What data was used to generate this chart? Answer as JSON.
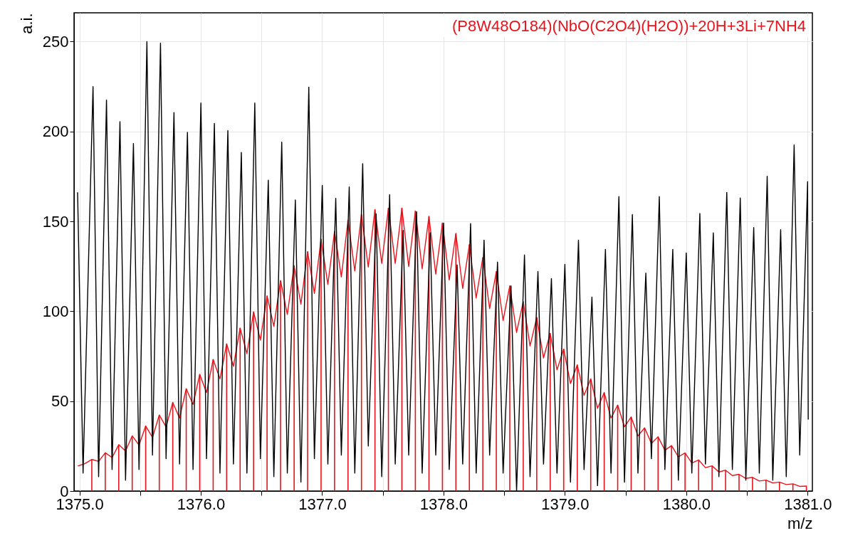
{
  "chart_data": {
    "type": "line",
    "xlabel": "m/z",
    "ylabel": "a.i.",
    "xlim": [
      1374.985,
      1381.01
    ],
    "ylim": [
      0,
      266
    ],
    "xticks": [
      {
        "value": 1375,
        "label": "1375.0"
      },
      {
        "value": 1375.5,
        "label": null
      },
      {
        "value": 1376,
        "label": "1376.0"
      },
      {
        "value": 1376.5,
        "label": null
      },
      {
        "value": 1377,
        "label": "1377.0"
      },
      {
        "value": 1377.5,
        "label": null
      },
      {
        "value": 1378,
        "label": "1378.0"
      },
      {
        "value": 1378.5,
        "label": null
      },
      {
        "value": 1379,
        "label": "1379.0"
      },
      {
        "value": 1379.5,
        "label": null
      },
      {
        "value": 1380,
        "label": "1380.0"
      },
      {
        "value": 1380.5,
        "label": null
      },
      {
        "value": 1381,
        "label": "1381.0"
      }
    ],
    "yticks": [
      0,
      50,
      100,
      150,
      200,
      250
    ],
    "grid": true,
    "legend": "top right",
    "series": [
      {
        "color": "#000000",
        "x": [
          1374.985,
          1375.03,
          1375.112,
          1375.158,
          1375.223,
          1375.269,
          1375.334,
          1375.38,
          1375.445,
          1375.491,
          1375.556,
          1375.602,
          1375.668,
          1375.714,
          1375.779,
          1375.825,
          1375.89,
          1375.936,
          1376.001,
          1376.047,
          1376.112,
          1376.158,
          1376.223,
          1376.269,
          1376.334,
          1376.38,
          1376.445,
          1376.491,
          1376.556,
          1376.602,
          1376.667,
          1376.713,
          1376.779,
          1376.825,
          1376.89,
          1376.936,
          1377.001,
          1377.047,
          1377.112,
          1377.158,
          1377.223,
          1377.269,
          1377.334,
          1377.38,
          1377.445,
          1377.491,
          1377.556,
          1377.602,
          1377.667,
          1377.713,
          1377.778,
          1377.824,
          1377.89,
          1377.936,
          1378.001,
          1378.047,
          1378.112,
          1378.158,
          1378.223,
          1378.269,
          1378.334,
          1378.38,
          1378.445,
          1378.491,
          1378.556,
          1378.602,
          1378.667,
          1378.713,
          1378.778,
          1378.824,
          1378.889,
          1378.935,
          1379,
          1379.046,
          1379.112,
          1379.158,
          1379.223,
          1379.269,
          1379.334,
          1379.38,
          1379.445,
          1379.491,
          1379.556,
          1379.602,
          1379.667,
          1379.713,
          1379.778,
          1379.824,
          1379.889,
          1379.935,
          1380,
          1380.046,
          1380.112,
          1380.158,
          1380.223,
          1380.269,
          1380.334,
          1380.38,
          1380.445,
          1380.491,
          1380.556,
          1380.602,
          1380.667,
          1380.713,
          1380.778,
          1380.824,
          1380.889,
          1380.935,
          1381,
          1381.005
        ],
        "values": [
          166,
          10,
          225,
          8,
          217.5,
          12,
          205.5,
          6,
          193.3,
          12,
          250,
          20,
          249.2,
          18,
          210.5,
          15,
          199.5,
          12,
          215.8,
          18,
          204.5,
          10,
          200.5,
          15,
          188.3,
          10,
          215.8,
          18,
          172.9,
          8,
          194.1,
          10,
          161.9,
          5,
          224.7,
          18,
          170,
          15,
          162.8,
          20,
          169.1,
          10,
          182.1,
          25,
          154.1,
          8,
          164.9,
          15,
          145,
          20,
          155.4,
          10,
          143.7,
          20,
          149.1,
          12,
          125.8,
          15,
          148.8,
          10,
          139.6,
          20,
          127.4,
          10,
          114.1,
          0,
          131.3,
          8,
          122.1,
          15,
          118.2,
          10,
          126.1,
          5,
          139.6,
          12,
          107.9,
          3,
          134.4,
          10,
          163.8,
          5,
          153.8,
          10,
          121.2,
          18,
          163.8,
          12,
          134.4,
          6,
          132.4,
          10,
          154.4,
          15,
          143.6,
          8,
          166.1,
          12,
          163,
          6,
          146.6,
          10,
          175.1,
          6,
          145.4,
          8,
          192.5,
          20,
          172.1,
          40
        ]
      },
      {
        "type": "bar",
        "color": "#e8141c",
        "x": [
          1375.102,
          1375.213,
          1375.324,
          1375.435,
          1375.546,
          1375.658,
          1375.769,
          1375.88,
          1375.991,
          1376.102,
          1376.213,
          1376.324,
          1376.435,
          1376.546,
          1376.657,
          1376.769,
          1376.88,
          1376.991,
          1377.102,
          1377.213,
          1377.324,
          1377.435,
          1377.546,
          1377.657,
          1377.768,
          1377.88,
          1377.991,
          1378.102,
          1378.213,
          1378.324,
          1378.435,
          1378.546,
          1378.657,
          1378.768,
          1378.879,
          1378.99,
          1379.102,
          1379.213,
          1379.324,
          1379.435,
          1379.546,
          1379.657,
          1379.768,
          1379.879,
          1379.99,
          1380.102,
          1380.213,
          1380.324,
          1380.435,
          1380.546,
          1380.657,
          1380.768,
          1380.879,
          1380.99
        ],
        "values": [
          17.6,
          21.3,
          25.8,
          30.7,
          36.2,
          42.3,
          49.3,
          56.9,
          64.9,
          73.2,
          81.9,
          90.7,
          99.7,
          108.6,
          117.1,
          125.4,
          133.2,
          140.1,
          144.4,
          150.7,
          153.8,
          156.6,
          157.4,
          157.4,
          155.8,
          152.8,
          149.1,
          143.3,
          137.1,
          129.9,
          122.1,
          114.1,
          105.4,
          96.6,
          87.7,
          79,
          70.2,
          62.4,
          54.8,
          47.8,
          41.2,
          35.1,
          30.2,
          25.3,
          21.2,
          17.3,
          14,
          11.6,
          9.3,
          7.6,
          6.1,
          5,
          4,
          2.8
        ]
      },
      {
        "name": "(P8W48O184)(NbO(C2O4)(H2O))+20H+3Li+7NH4",
        "color": "#e8141c",
        "x": [
          1374.99,
          1375.046,
          1375.102,
          1375.158,
          1375.213,
          1375.269,
          1375.324,
          1375.38,
          1375.435,
          1375.491,
          1375.546,
          1375.602,
          1375.658,
          1375.714,
          1375.769,
          1375.825,
          1375.88,
          1375.936,
          1375.991,
          1376.047,
          1376.102,
          1376.158,
          1376.213,
          1376.269,
          1376.324,
          1376.38,
          1376.435,
          1376.491,
          1376.546,
          1376.602,
          1376.657,
          1376.713,
          1376.769,
          1376.825,
          1376.88,
          1376.936,
          1376.991,
          1377.047,
          1377.102,
          1377.158,
          1377.213,
          1377.269,
          1377.324,
          1377.38,
          1377.435,
          1377.491,
          1377.546,
          1377.602,
          1377.657,
          1377.713,
          1377.768,
          1377.824,
          1377.88,
          1377.936,
          1377.991,
          1378.047,
          1378.102,
          1378.158,
          1378.213,
          1378.269,
          1378.324,
          1378.38,
          1378.435,
          1378.491,
          1378.546,
          1378.602,
          1378.657,
          1378.713,
          1378.768,
          1378.824,
          1378.879,
          1378.935,
          1378.99,
          1379.046,
          1379.102,
          1379.158,
          1379.213,
          1379.269,
          1379.324,
          1379.38,
          1379.435,
          1379.491,
          1379.546,
          1379.602,
          1379.657,
          1379.713,
          1379.768,
          1379.824,
          1379.879,
          1379.935,
          1379.99,
          1380.046,
          1380.102,
          1380.158,
          1380.213,
          1380.269,
          1380.324,
          1380.38,
          1380.435,
          1380.491,
          1380.546,
          1380.602,
          1380.657,
          1380.713,
          1380.768,
          1380.824,
          1380.879,
          1380.935,
          1380.99
        ],
        "values": [
          14,
          15.3,
          17.6,
          16.5,
          21.3,
          18.6,
          25.8,
          22.3,
          30.7,
          25.6,
          36.2,
          29.8,
          42.3,
          35.7,
          49.3,
          40.6,
          56.9,
          48.2,
          64.9,
          54.8,
          73.2,
          62.4,
          81.9,
          69.4,
          90.7,
          76.5,
          99.7,
          84,
          108.6,
          91.6,
          117.1,
          98.2,
          125.4,
          104,
          133.2,
          109.9,
          140.1,
          114.9,
          144.4,
          119.1,
          150.7,
          122.4,
          153.8,
          124.6,
          156.6,
          126.6,
          157.4,
          126.6,
          157.4,
          124.9,
          155.8,
          123.6,
          152.8,
          120.7,
          149.1,
          117.4,
          143.3,
          112.7,
          137.1,
          107.4,
          129.9,
          101.5,
          122.1,
          94.9,
          114.1,
          88.2,
          105.4,
          80.7,
          96.6,
          74,
          87.7,
          67.4,
          79,
          59.8,
          70.2,
          53.2,
          62.4,
          46,
          54.8,
          40.6,
          47.8,
          35.7,
          41.2,
          30.7,
          35.1,
          26.5,
          30.2,
          22.7,
          25.3,
          19,
          21.2,
          15.6,
          17.3,
          13,
          14,
          10.6,
          11.6,
          8.6,
          9.3,
          7,
          7.6,
          5.6,
          6.1,
          4.5,
          5,
          3.6,
          4,
          2.6,
          2.8
        ]
      }
    ]
  }
}
